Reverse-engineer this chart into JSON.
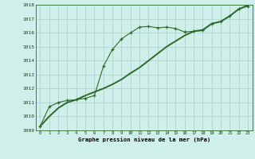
{
  "x": [
    0,
    1,
    2,
    3,
    4,
    5,
    6,
    7,
    8,
    9,
    10,
    11,
    12,
    13,
    14,
    15,
    16,
    17,
    18,
    19,
    20,
    21,
    22,
    23
  ],
  "series_marker": [
    1009.3,
    1010.7,
    1011.0,
    1011.15,
    1011.2,
    1011.3,
    1011.5,
    1013.6,
    1014.8,
    1015.55,
    1016.0,
    1016.4,
    1016.45,
    1016.35,
    1016.4,
    1016.3,
    1016.05,
    1016.1,
    1016.15,
    1016.65,
    1016.8,
    1017.2,
    1017.7,
    1017.9
  ],
  "series_smooth": [
    1009.3,
    1010.0,
    1010.6,
    1011.0,
    1011.2,
    1011.5,
    1011.75,
    1012.0,
    1012.3,
    1012.65,
    1013.1,
    1013.5,
    1014.0,
    1014.5,
    1015.0,
    1015.4,
    1015.8,
    1016.1,
    1016.2,
    1016.65,
    1016.8,
    1017.2,
    1017.7,
    1017.95
  ],
  "line_color": "#2d6a2d",
  "bg_color": "#cff0ea",
  "grid_color": "#aacfc8",
  "title": "Graphe pression niveau de la mer (hPa)",
  "ylim": [
    1009,
    1018
  ],
  "yticks": [
    1009,
    1010,
    1011,
    1012,
    1013,
    1014,
    1015,
    1016,
    1017,
    1018
  ],
  "xticks": [
    0,
    1,
    2,
    3,
    4,
    5,
    6,
    7,
    8,
    9,
    10,
    11,
    12,
    13,
    14,
    15,
    16,
    17,
    18,
    19,
    20,
    21,
    22,
    23
  ]
}
